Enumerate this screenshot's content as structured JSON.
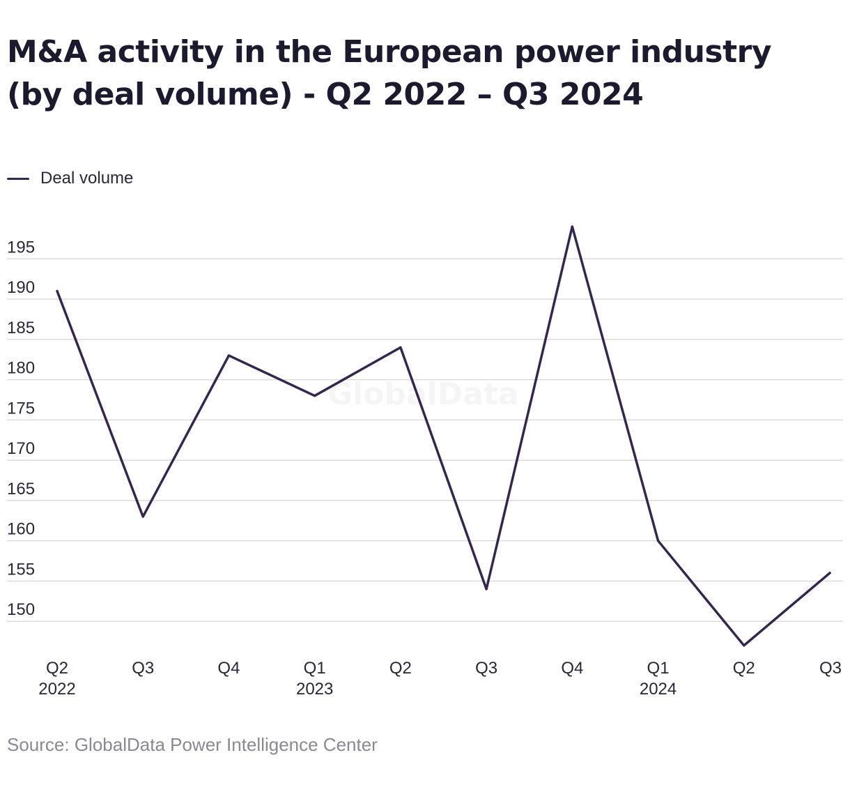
{
  "title": "M&A activity in the European power industry (by deal volume) - Q2 2022 – Q3 2024",
  "legend": {
    "label": "Deal volume",
    "color": "#35264f"
  },
  "source": "Source: GlobalData Power Intelligence Center",
  "watermark": "GlobalData",
  "chart_data": {
    "type": "line",
    "categories": [
      [
        "Q2",
        "2022"
      ],
      [
        "Q3",
        ""
      ],
      [
        "Q4",
        ""
      ],
      [
        "Q1",
        "2023"
      ],
      [
        "Q2",
        ""
      ],
      [
        "Q3",
        ""
      ],
      [
        "Q4",
        ""
      ],
      [
        "Q1",
        "2024"
      ],
      [
        "Q2",
        ""
      ],
      [
        "Q3",
        ""
      ]
    ],
    "series": [
      {
        "name": "Deal volume",
        "values": [
          191,
          163,
          183,
          178,
          184,
          154,
          199,
          160,
          147,
          156
        ],
        "color": "#35264f"
      }
    ],
    "y_ticks": [
      150,
      155,
      160,
      165,
      170,
      175,
      180,
      185,
      190,
      195
    ],
    "ylim": [
      145,
      200
    ],
    "grid": true,
    "grid_color": "#dcdcdc",
    "legend_position": "top-left"
  }
}
